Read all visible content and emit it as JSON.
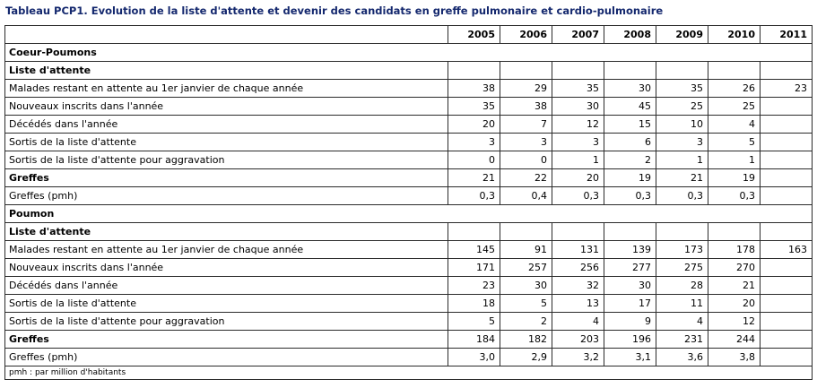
{
  "title": "Tableau PCP1. Evolution de la liste d'attente et devenir des candidats en greffe pulmonaire et cardio-pulmonaire",
  "years": [
    "2005",
    "2006",
    "2007",
    "2008",
    "2009",
    "2010",
    "2011"
  ],
  "rows": [
    {
      "type": "section",
      "label": "Coeur-Poumons"
    },
    {
      "type": "subsection",
      "label": "Liste d'attente"
    },
    {
      "type": "data",
      "label": "Malades restant en attente au 1er janvier de chaque année",
      "values": [
        "38",
        "29",
        "35",
        "30",
        "35",
        "26",
        "23"
      ]
    },
    {
      "type": "data",
      "label": "Nouveaux inscrits dans l'année",
      "values": [
        "35",
        "38",
        "30",
        "45",
        "25",
        "25",
        ""
      ]
    },
    {
      "type": "data",
      "label": "Décédés dans l'année",
      "values": [
        "20",
        "7",
        "12",
        "15",
        "10",
        "4",
        ""
      ]
    },
    {
      "type": "data",
      "label": "Sortis de la liste d'attente",
      "values": [
        "3",
        "3",
        "3",
        "6",
        "3",
        "5",
        ""
      ]
    },
    {
      "type": "data",
      "label": "Sortis de la liste d'attente pour aggravation",
      "values": [
        "0",
        "0",
        "1",
        "2",
        "1",
        "1",
        ""
      ]
    },
    {
      "type": "bold",
      "label": "Greffes",
      "values": [
        "21",
        "22",
        "20",
        "19",
        "21",
        "19",
        ""
      ]
    },
    {
      "type": "data",
      "label": "Greffes (pmh)",
      "values": [
        "0,3",
        "0,4",
        "0,3",
        "0,3",
        "0,3",
        "0,3",
        ""
      ]
    },
    {
      "type": "section",
      "label": "Poumon"
    },
    {
      "type": "subsection",
      "label": "Liste d'attente"
    },
    {
      "type": "data",
      "label": "Malades restant en attente au 1er janvier de chaque année",
      "values": [
        "145",
        "91",
        "131",
        "139",
        "173",
        "178",
        "163"
      ]
    },
    {
      "type": "data",
      "label": "Nouveaux inscrits dans l'année",
      "values": [
        "171",
        "257",
        "256",
        "277",
        "275",
        "270",
        ""
      ]
    },
    {
      "type": "data",
      "label": "Décédés dans l'année",
      "values": [
        "23",
        "30",
        "32",
        "30",
        "28",
        "21",
        ""
      ]
    },
    {
      "type": "data",
      "label": "Sortis de la liste d'attente",
      "values": [
        "18",
        "5",
        "13",
        "17",
        "11",
        "20",
        ""
      ]
    },
    {
      "type": "data",
      "label": "Sortis de la liste d'attente pour aggravation",
      "values": [
        "5",
        "2",
        "4",
        "9",
        "4",
        "12",
        ""
      ]
    },
    {
      "type": "bold",
      "label": "Greffes",
      "values": [
        "184",
        "182",
        "203",
        "196",
        "231",
        "244",
        ""
      ]
    },
    {
      "type": "data",
      "label": "Greffes (pmh)",
      "values": [
        "3,0",
        "2,9",
        "3,2",
        "3,1",
        "3,6",
        "3,8",
        ""
      ]
    }
  ],
  "footnote": "pmh : par million d'habitants"
}
